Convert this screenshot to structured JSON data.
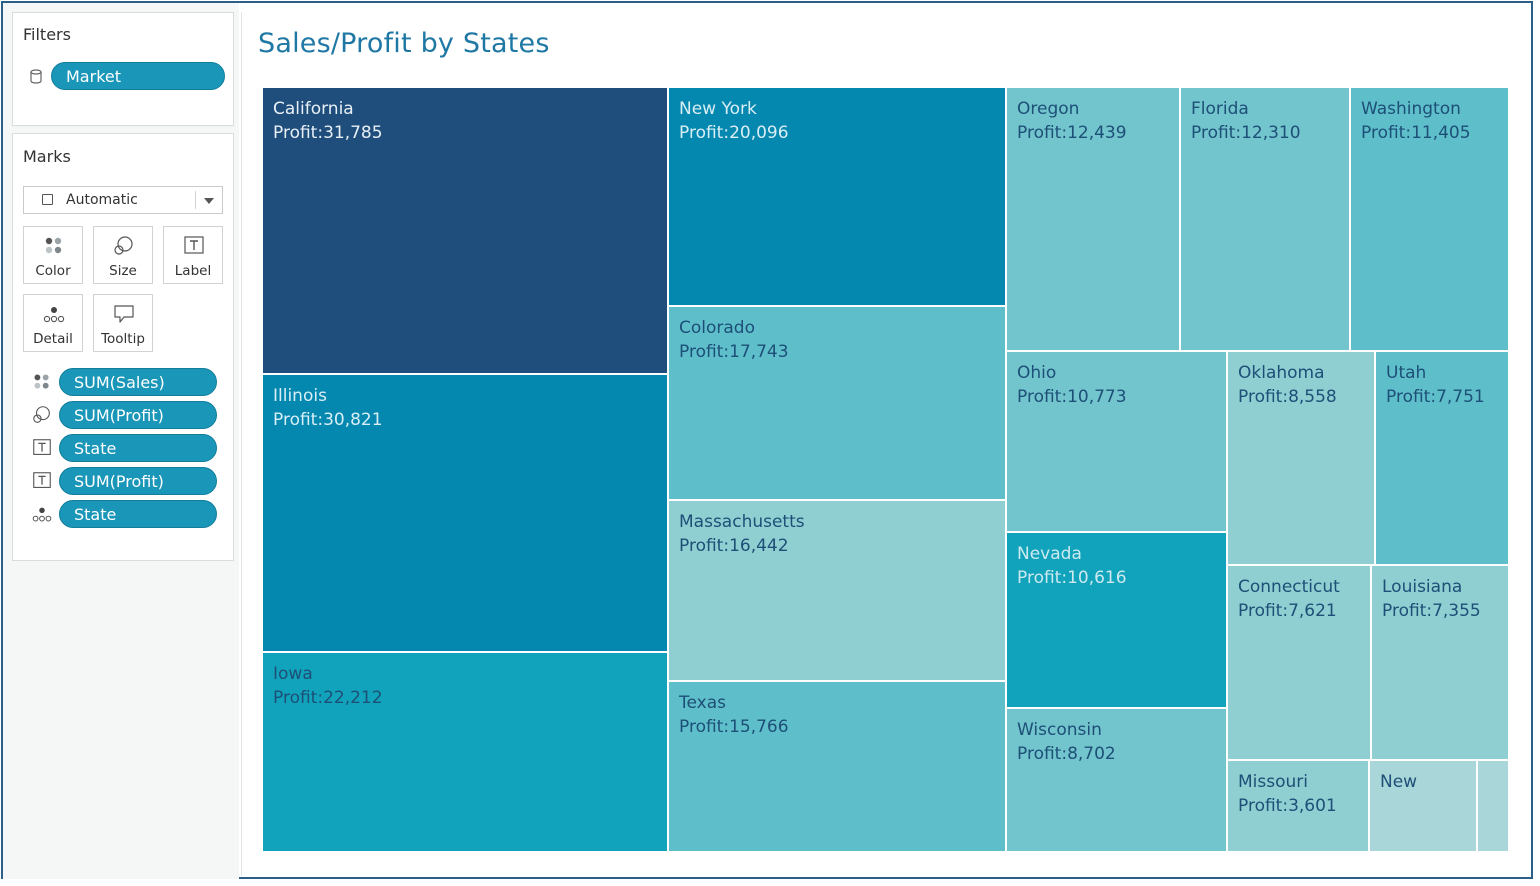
{
  "filters": {
    "title": "Filters",
    "pills": [
      {
        "label": "Market",
        "icon": "database-icon"
      }
    ]
  },
  "marks": {
    "title": "Marks",
    "mark_type": "Automatic",
    "tiles": [
      {
        "label": "Color",
        "icon": "color-dots-icon"
      },
      {
        "label": "Size",
        "icon": "size-circles-icon"
      },
      {
        "label": "Label",
        "icon": "label-t-icon"
      },
      {
        "label": "Detail",
        "icon": "detail-dots-icon"
      },
      {
        "label": "Tooltip",
        "icon": "tooltip-bubble-icon"
      }
    ],
    "pills": [
      {
        "label": "SUM(Sales)",
        "icon": "color-dots-icon"
      },
      {
        "label": "SUM(Profit)",
        "icon": "size-circles-icon"
      },
      {
        "label": "State",
        "icon": "label-t-icon"
      },
      {
        "label": "SUM(Profit)",
        "icon": "label-t-icon"
      },
      {
        "label": "State",
        "icon": "detail-dots-icon"
      }
    ]
  },
  "chart": {
    "title": "Sales/Profit by States",
    "profit_prefix": "Profit:",
    "colors": {
      "darkest": "#1f4e7c",
      "dark": "#0588b0",
      "mid": "#11a3bb",
      "light": "#5ebfcb",
      "lighter": "#72c4cd",
      "pale": "#8fcfd2",
      "palest": "#a9d6d8"
    }
  },
  "chart_data": {
    "type": "treemap",
    "title": "Sales/Profit by States",
    "size_measure": "SUM(Sales)",
    "color_measure": "SUM(Sales)",
    "label_fields": [
      "State",
      "SUM(Profit)"
    ],
    "items": [
      {
        "state": "California",
        "profit": "31,785"
      },
      {
        "state": "Illinois",
        "profit": "30,821"
      },
      {
        "state": "Iowa",
        "profit": "22,212"
      },
      {
        "state": "New York",
        "profit": "20,096"
      },
      {
        "state": "Colorado",
        "profit": "17,743"
      },
      {
        "state": "Massachusetts",
        "profit": "16,442"
      },
      {
        "state": "Texas",
        "profit": "15,766"
      },
      {
        "state": "Oregon",
        "profit": "12,439"
      },
      {
        "state": "Florida",
        "profit": "12,310"
      },
      {
        "state": "Washington",
        "profit": "11,405"
      },
      {
        "state": "Ohio",
        "profit": "10,773"
      },
      {
        "state": "Nevada",
        "profit": "10,616"
      },
      {
        "state": "Wisconsin",
        "profit": "8,702"
      },
      {
        "state": "Oklahoma",
        "profit": "8,558"
      },
      {
        "state": "Utah",
        "profit": "7,751"
      },
      {
        "state": "Connecticut",
        "profit": "7,621"
      },
      {
        "state": "Louisiana",
        "profit": "7,355"
      },
      {
        "state": "Missouri",
        "profit": "3,601"
      },
      {
        "state": "New",
        "profit": ""
      },
      {
        "state": "",
        "profit": ""
      }
    ]
  }
}
